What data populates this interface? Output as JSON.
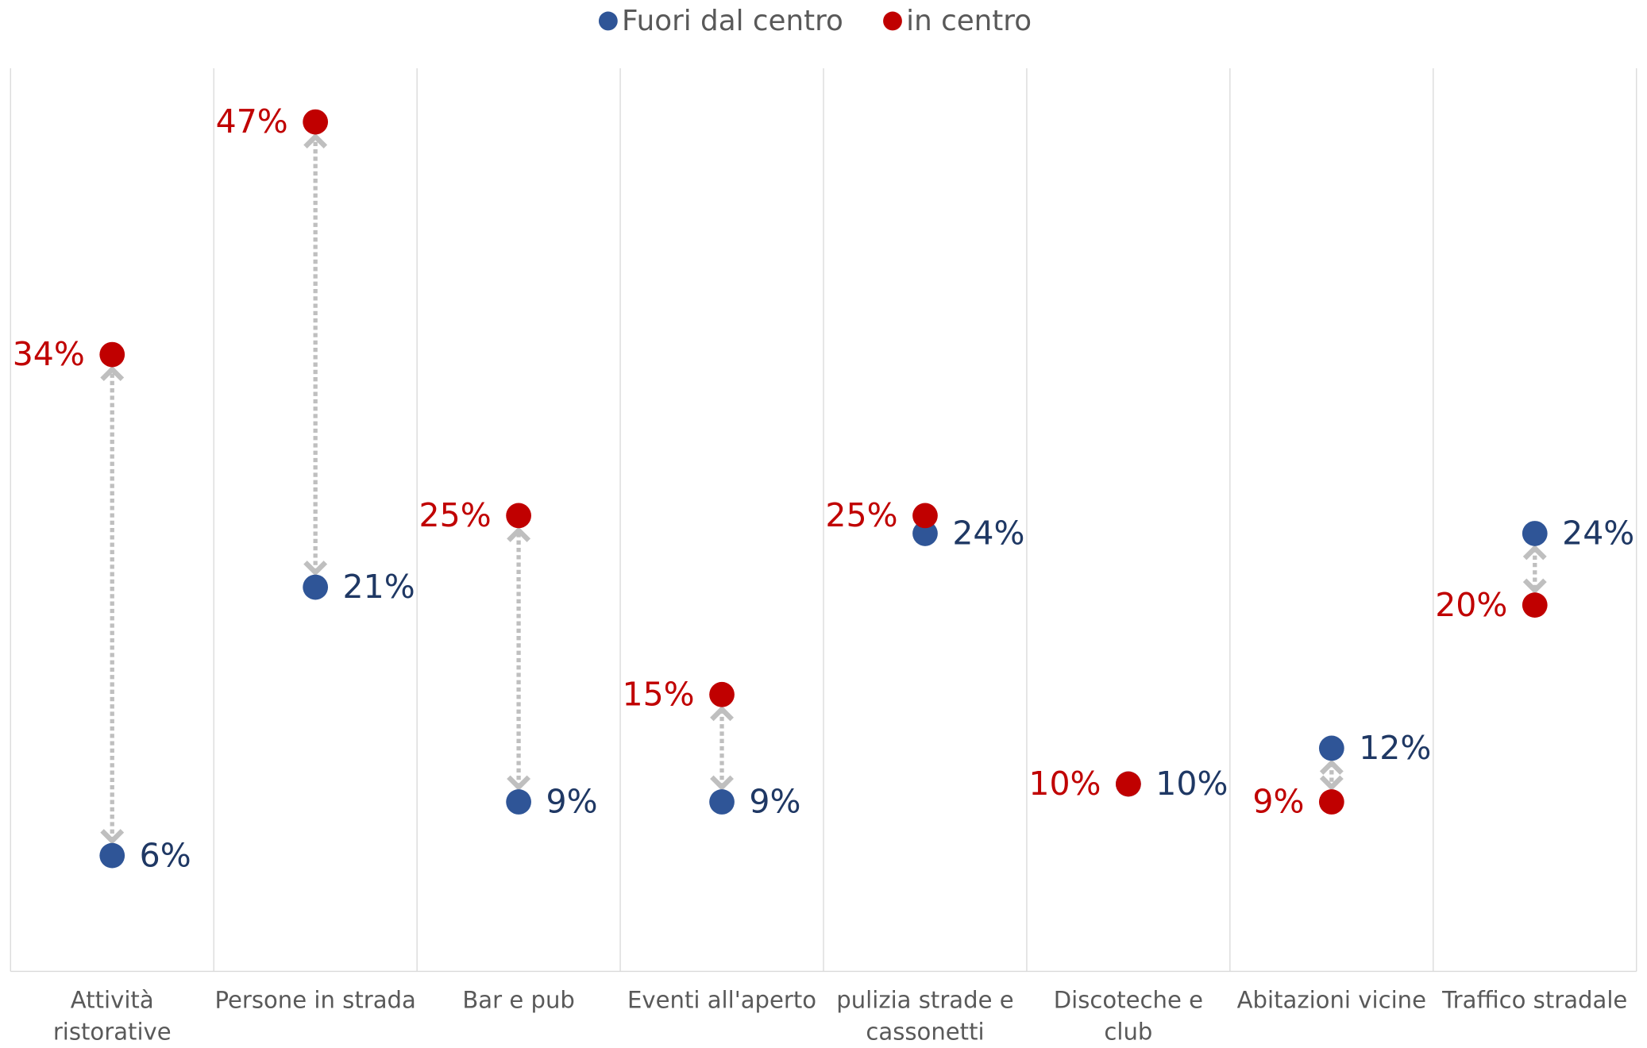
{
  "chart_data": {
    "type": "dumbbell",
    "categories": [
      "Attività ristorative",
      "Persone in strada",
      "Bar e pub",
      "Eventi all'aperto",
      "pulizia strade e cassonetti",
      "Discoteche e club",
      "Abitazioni vicine",
      "Traffico stradale"
    ],
    "series": [
      {
        "name": "Fuori dal centro",
        "color": "#2f5597",
        "label_color": "#1f3864",
        "values": [
          6,
          21,
          9,
          9,
          24,
          10,
          12,
          24
        ],
        "value_labels": [
          "6%",
          "21%",
          "9%",
          "9%",
          "24%",
          "10%",
          "12%",
          "24%"
        ]
      },
      {
        "name": "in centro",
        "color": "#c00000",
        "label_color": "#c00000",
        "values": [
          34,
          47,
          25,
          15,
          25,
          10,
          9,
          20
        ],
        "value_labels": [
          "34%",
          "47%",
          "25%",
          "15%",
          "25%",
          "10%",
          "9%",
          "20%"
        ]
      }
    ],
    "ylim": [
      0,
      50
    ],
    "legend": "top"
  }
}
